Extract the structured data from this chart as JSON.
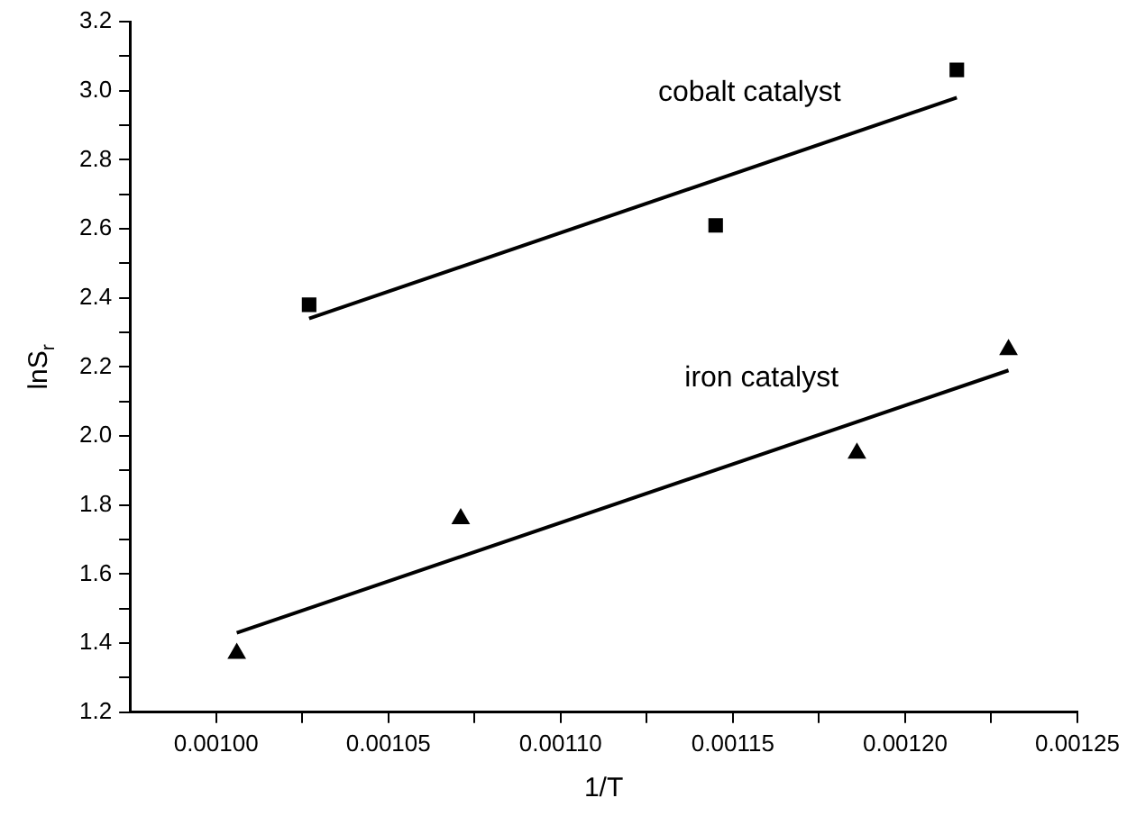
{
  "chart_data": {
    "type": "scatter",
    "xlabel": "1/T",
    "ylabel": "lnS$_{r}$",
    "xlim": [
      0.000975,
      0.00125
    ],
    "ylim": [
      1.2,
      3.2
    ],
    "xticks": [
      {
        "value": 0.001,
        "label": "0.00100"
      },
      {
        "value": 0.001025,
        "label": null
      },
      {
        "value": 0.00105,
        "label": "0.00105"
      },
      {
        "value": 0.001075,
        "label": null
      },
      {
        "value": 0.0011,
        "label": "0.00110"
      },
      {
        "value": 0.001125,
        "label": null
      },
      {
        "value": 0.00115,
        "label": "0.00115"
      },
      {
        "value": 0.001175,
        "label": null
      },
      {
        "value": 0.0012,
        "label": "0.00120"
      },
      {
        "value": 0.001225,
        "label": null
      },
      {
        "value": 0.00125,
        "label": "0.00125"
      }
    ],
    "yticks": [
      {
        "value": 1.2,
        "label": "1.2"
      },
      {
        "value": 1.3,
        "label": null
      },
      {
        "value": 1.4,
        "label": "1.4"
      },
      {
        "value": 1.5,
        "label": null
      },
      {
        "value": 1.6,
        "label": "1.6"
      },
      {
        "value": 1.7,
        "label": null
      },
      {
        "value": 1.8,
        "label": "1.8"
      },
      {
        "value": 1.9,
        "label": null
      },
      {
        "value": 2.0,
        "label": "2.0"
      },
      {
        "value": 2.1,
        "label": null
      },
      {
        "value": 2.2,
        "label": "2.2"
      },
      {
        "value": 2.3,
        "label": null
      },
      {
        "value": 2.4,
        "label": "2.4"
      },
      {
        "value": 2.5,
        "label": null
      },
      {
        "value": 2.6,
        "label": "2.6"
      },
      {
        "value": 2.7,
        "label": null
      },
      {
        "value": 2.8,
        "label": "2.8"
      },
      {
        "value": 2.9,
        "label": null
      },
      {
        "value": 3.0,
        "label": "3.0"
      },
      {
        "value": 3.1,
        "label": null
      },
      {
        "value": 3.2,
        "label": "3.2"
      }
    ],
    "series": [
      {
        "marker": "square",
        "color": "#000000",
        "x": [
          0.001027,
          0.001145,
          0.001215
        ],
        "values": [
          2.38,
          2.61,
          3.06
        ]
      },
      {
        "type": "line",
        "marker": "none",
        "line_style": "solid",
        "color": "#000000",
        "x": [
          0.001027,
          0.001215
        ],
        "values": [
          2.34,
          2.98
        ]
      },
      {
        "marker": "triangle",
        "color": "#000000",
        "x": [
          0.001006,
          0.001071,
          0.001186,
          0.00123
        ],
        "values": [
          1.37,
          1.76,
          1.95,
          2.25
        ]
      },
      {
        "type": "line",
        "marker": "none",
        "line_style": "solid",
        "color": "#000000",
        "x": [
          0.001006,
          0.00123
        ],
        "values": [
          1.43,
          2.19
        ]
      }
    ],
    "annotations": [
      "cobalt catalyst",
      "iron catalyst"
    ],
    "grid": false,
    "legend": false
  }
}
